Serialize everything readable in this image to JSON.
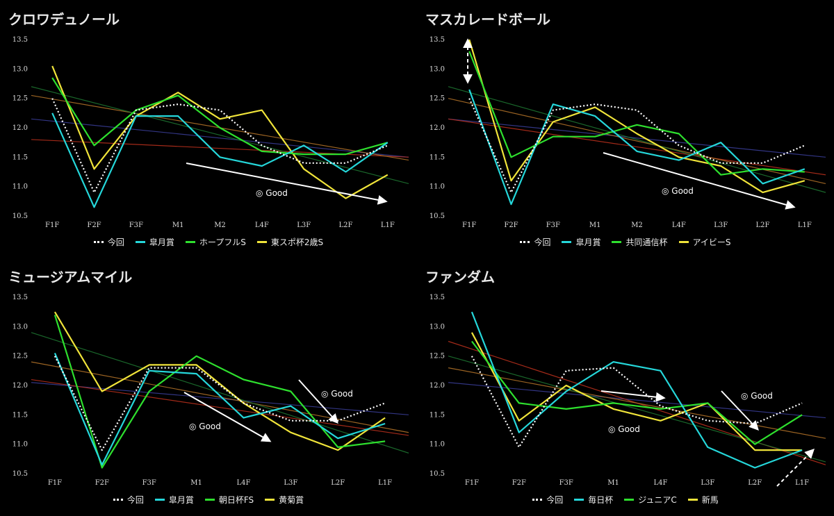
{
  "colors": {
    "konkai": "#ffffff",
    "satsuki": "#25d7da",
    "green": "#2ee02e",
    "yellow": "#f0e43a",
    "trend_navy": "#3b3f9a",
    "trend_red": "#c0321e",
    "trend_orange": "#b8762a",
    "trend_green": "#1f7a33"
  },
  "chart_data": [
    {
      "type": "line",
      "title": "クロワデュノール",
      "categories": [
        "F1F",
        "F2F",
        "F3F",
        "M1",
        "M2",
        "L4F",
        "L3F",
        "L2F",
        "L1F"
      ],
      "ylim": [
        10.5,
        13.5
      ],
      "yticks": [
        "10.5",
        "11.0",
        "11.5",
        "12.0",
        "12.5",
        "13.0",
        "13.5"
      ],
      "series": [
        {
          "name": "今回",
          "color_key": "konkai",
          "dotted": true,
          "values": [
            12.5,
            10.9,
            12.3,
            12.4,
            12.3,
            11.7,
            11.4,
            11.4,
            11.7
          ]
        },
        {
          "name": "皐月賞",
          "color_key": "satsuki",
          "values": [
            12.25,
            10.65,
            12.2,
            12.2,
            11.5,
            11.35,
            11.7,
            11.25,
            11.75
          ]
        },
        {
          "name": "ホープフルS",
          "color_key": "green",
          "values": [
            12.85,
            11.7,
            12.3,
            12.55,
            12.0,
            11.6,
            11.55,
            11.55,
            11.75
          ]
        },
        {
          "name": "東スポ杯2歳S",
          "color_key": "yellow",
          "values": [
            13.05,
            11.3,
            12.2,
            12.6,
            12.15,
            12.3,
            11.3,
            10.8,
            11.2
          ]
        }
      ],
      "trends": [
        {
          "color_key": "trend_navy",
          "from": 12.15,
          "to": 11.5
        },
        {
          "color_key": "trend_red",
          "from": 11.8,
          "to": 11.5
        },
        {
          "color_key": "trend_orange",
          "from": 12.55,
          "to": 11.45
        },
        {
          "color_key": "trend_green",
          "from": 12.7,
          "to": 11.05
        }
      ],
      "annotations": [
        {
          "text": "◎ Good"
        }
      ]
    },
    {
      "type": "line",
      "title": "マスカレードボール",
      "categories": [
        "F1F",
        "F2F",
        "F3F",
        "M1",
        "M2",
        "L4F",
        "L3F",
        "L2F",
        "L1F"
      ],
      "ylim": [
        10.5,
        13.5
      ],
      "yticks": [
        "10.5",
        "11.0",
        "11.5",
        "12.0",
        "12.5",
        "13.0",
        "13.5"
      ],
      "series": [
        {
          "name": "今回",
          "color_key": "konkai",
          "dotted": true,
          "values": [
            12.5,
            10.9,
            12.3,
            12.4,
            12.3,
            11.7,
            11.4,
            11.4,
            11.7
          ]
        },
        {
          "name": "皐月賞",
          "color_key": "satsuki",
          "values": [
            12.65,
            10.7,
            12.4,
            12.2,
            11.6,
            11.45,
            11.75,
            11.05,
            11.3
          ]
        },
        {
          "name": "共同通信杯",
          "color_key": "green",
          "values": [
            13.3,
            11.5,
            11.85,
            11.85,
            12.05,
            11.9,
            11.2,
            11.3,
            11.25
          ]
        },
        {
          "name": "アイビーS",
          "color_key": "yellow",
          "values": [
            13.5,
            11.1,
            12.1,
            12.35,
            11.9,
            11.5,
            11.35,
            10.9,
            11.1
          ]
        }
      ],
      "trends": [
        {
          "color_key": "trend_navy",
          "from": 12.15,
          "to": 11.5
        },
        {
          "color_key": "trend_red",
          "from": 12.15,
          "to": 11.2
        },
        {
          "color_key": "trend_orange",
          "from": 12.5,
          "to": 11.05
        },
        {
          "color_key": "trend_green",
          "from": 12.7,
          "to": 10.9
        }
      ],
      "annotations": [
        {
          "text": "◎ Good"
        }
      ]
    },
    {
      "type": "line",
      "title": "ミュージアムマイル",
      "categories": [
        "F1F",
        "F2F",
        "F3F",
        "M1",
        "L4F",
        "L3F",
        "L2F",
        "L1F"
      ],
      "ylim": [
        10.5,
        13.5
      ],
      "yticks": [
        "10.5",
        "11.0",
        "11.5",
        "12.0",
        "12.5",
        "13.0",
        "13.5"
      ],
      "series": [
        {
          "name": "今回",
          "color_key": "konkai",
          "dotted": true,
          "values": [
            12.5,
            10.9,
            12.3,
            12.3,
            11.7,
            11.4,
            11.4,
            11.7
          ]
        },
        {
          "name": "皐月賞",
          "color_key": "satsuki",
          "values": [
            12.55,
            10.65,
            12.25,
            12.2,
            11.45,
            11.65,
            11.1,
            11.35
          ]
        },
        {
          "name": "朝日杯FS",
          "color_key": "green",
          "values": [
            13.2,
            10.6,
            11.9,
            12.5,
            12.1,
            11.9,
            10.95,
            11.05
          ]
        },
        {
          "name": "黄菊賞",
          "color_key": "yellow",
          "values": [
            13.25,
            11.9,
            12.35,
            12.35,
            11.7,
            11.2,
            10.9,
            11.45
          ]
        }
      ],
      "trends": [
        {
          "color_key": "trend_navy",
          "from": 12.05,
          "to": 11.5
        },
        {
          "color_key": "trend_red",
          "from": 12.1,
          "to": 11.15
        },
        {
          "color_key": "trend_orange",
          "from": 12.4,
          "to": 11.2
        },
        {
          "color_key": "trend_green",
          "from": 12.9,
          "to": 10.85
        }
      ],
      "annotations": [
        {
          "text": "◎ Good"
        },
        {
          "text": "◎ Good"
        }
      ]
    },
    {
      "type": "line",
      "title": "ファンダム",
      "categories": [
        "F1F",
        "F2F",
        "F3F",
        "M1",
        "L4F",
        "L3F",
        "L2F",
        "L1F"
      ],
      "ylim": [
        10.5,
        13.5
      ],
      "yticks": [
        "10.5",
        "11.0",
        "11.5",
        "12.0",
        "12.5",
        "13.0",
        "13.5"
      ],
      "series": [
        {
          "name": "今回",
          "color_key": "konkai",
          "dotted": true,
          "values": [
            12.5,
            10.95,
            12.25,
            12.3,
            11.65,
            11.4,
            11.35,
            11.7
          ]
        },
        {
          "name": "毎日杯",
          "color_key": "satsuki",
          "values": [
            13.25,
            11.2,
            11.9,
            12.4,
            12.25,
            10.95,
            10.6,
            10.9
          ]
        },
        {
          "name": "ジュニアC",
          "color_key": "green",
          "values": [
            12.75,
            11.7,
            11.6,
            11.7,
            11.6,
            11.7,
            11.0,
            11.5
          ]
        },
        {
          "name": "新馬",
          "color_key": "yellow",
          "values": [
            12.9,
            11.4,
            12.0,
            11.6,
            11.4,
            11.7,
            10.9,
            10.9
          ]
        }
      ],
      "trends": [
        {
          "color_key": "trend_navy",
          "from": 12.05,
          "to": 11.45
        },
        {
          "color_key": "trend_red",
          "from": 12.75,
          "to": 10.65
        },
        {
          "color_key": "trend_orange",
          "from": 12.3,
          "to": 11.1
        },
        {
          "color_key": "trend_green",
          "from": 12.5,
          "to": 10.7
        }
      ],
      "annotations": [
        {
          "text": "◎ Good"
        },
        {
          "text": "◎ Good"
        }
      ]
    }
  ]
}
